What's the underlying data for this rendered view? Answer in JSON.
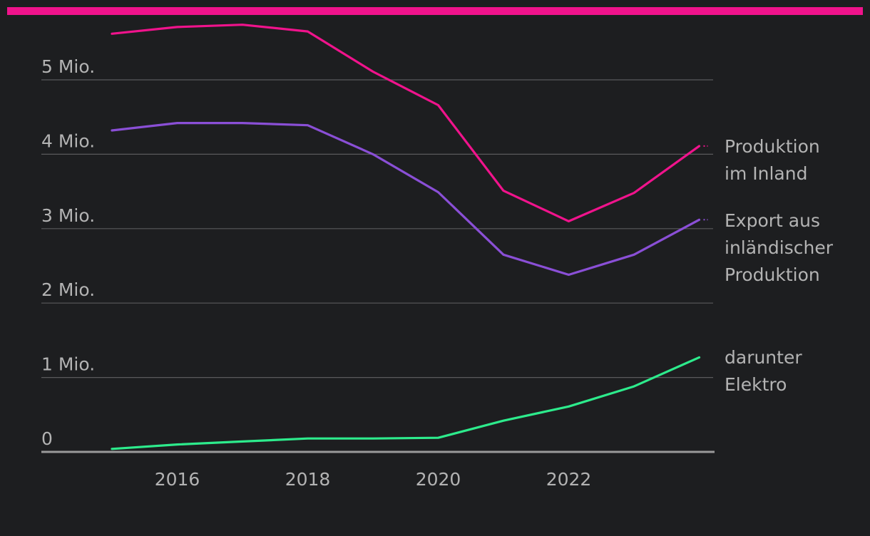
{
  "colors": {
    "background": "#1d1e20",
    "accent_bar": "#f0138c",
    "gridline": "#5a5a5c",
    "baseline": "#9a9a9a",
    "text": "#b3b3b3"
  },
  "chart_data": {
    "type": "line",
    "ylim": [
      0,
      5500000
    ],
    "xlim": [
      2014.8,
      2024.2
    ],
    "y_ticks": [
      {
        "value": 0,
        "label": "0"
      },
      {
        "value": 1000000,
        "label": "1 Mio."
      },
      {
        "value": 2000000,
        "label": "2 Mio."
      },
      {
        "value": 3000000,
        "label": "3 Mio."
      },
      {
        "value": 4000000,
        "label": "4 Mio."
      },
      {
        "value": 5000000,
        "label": "5 Mio."
      }
    ],
    "x_ticks": [
      {
        "value": 2016,
        "label": "2016"
      },
      {
        "value": 2018,
        "label": "2018"
      },
      {
        "value": 2020,
        "label": "2020"
      },
      {
        "value": 2022,
        "label": "2022"
      }
    ],
    "grid": true,
    "legend": "right, inline at line ends",
    "x": [
      2015,
      2016,
      2017,
      2018,
      2019,
      2020,
      2021,
      2022,
      2023,
      2024
    ],
    "series": [
      {
        "name_lines": [
          "Produktion",
          "im Inland"
        ],
        "color": "#f0138c",
        "values": [
          5620000,
          5710000,
          5740000,
          5650000,
          5110000,
          4660000,
          3510000,
          3100000,
          3480000,
          4110000
        ]
      },
      {
        "name_lines": [
          "Export aus",
          "inländischer",
          "Produktion"
        ],
        "color": "#8a4fd6",
        "values": [
          4320000,
          4420000,
          4420000,
          4390000,
          4000000,
          3490000,
          2650000,
          2380000,
          2650000,
          3120000
        ]
      },
      {
        "name_lines": [
          "darunter",
          "Elektro"
        ],
        "color": "#2deb8c",
        "values": [
          40000,
          100000,
          140000,
          180000,
          180000,
          190000,
          420000,
          610000,
          880000,
          1270000
        ]
      }
    ]
  }
}
